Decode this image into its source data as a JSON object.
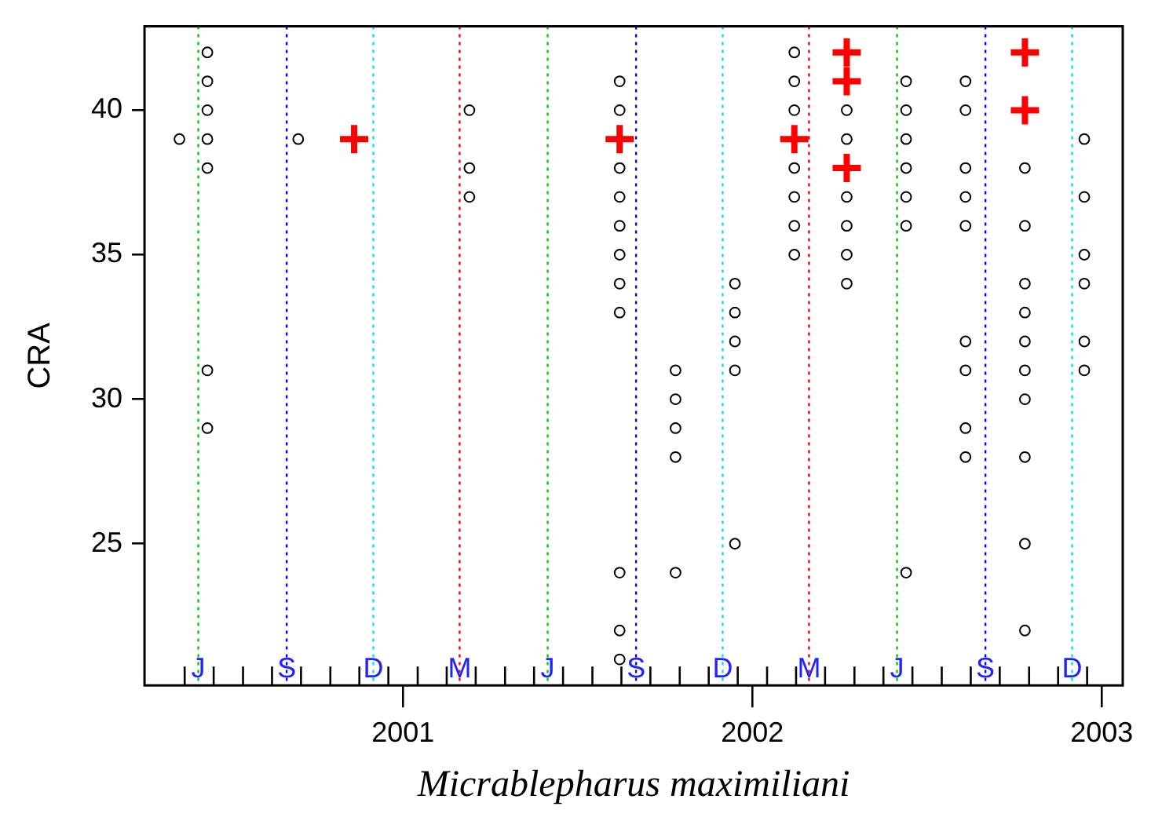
{
  "chart_data": {
    "type": "scatter",
    "xlabel": "Micrablepharus maximiliani",
    "ylabel": "CRA",
    "xlim": [
      2000.26,
      2003.06
    ],
    "ylim": [
      20.1,
      42.9
    ],
    "xticks": [
      {
        "value": 2000.375,
        "label": null
      },
      {
        "value": 2000.458,
        "label": null
      },
      {
        "value": 2000.542,
        "label": null
      },
      {
        "value": 2000.625,
        "label": null
      },
      {
        "value": 2000.708,
        "label": null
      },
      {
        "value": 2000.792,
        "label": null
      },
      {
        "value": 2000.875,
        "label": null
      },
      {
        "value": 2000.958,
        "label": null
      },
      2001,
      {
        "value": 2001.042,
        "label": null
      },
      {
        "value": 2001.125,
        "label": null
      },
      {
        "value": 2001.208,
        "label": null
      },
      {
        "value": 2001.292,
        "label": null
      },
      {
        "value": 2001.375,
        "label": null
      },
      {
        "value": 2001.458,
        "label": null
      },
      {
        "value": 2001.542,
        "label": null
      },
      {
        "value": 2001.625,
        "label": null
      },
      {
        "value": 2001.708,
        "label": null
      },
      {
        "value": 2001.792,
        "label": null
      },
      {
        "value": 2001.875,
        "label": null
      },
      {
        "value": 2001.958,
        "label": null
      },
      2002,
      {
        "value": 2002.042,
        "label": null
      },
      {
        "value": 2002.125,
        "label": null
      },
      {
        "value": 2002.208,
        "label": null
      },
      {
        "value": 2002.292,
        "label": null
      },
      {
        "value": 2002.375,
        "label": null
      },
      {
        "value": 2002.458,
        "label": null
      },
      {
        "value": 2002.542,
        "label": null
      },
      {
        "value": 2002.625,
        "label": null
      },
      {
        "value": 2002.708,
        "label": null
      },
      {
        "value": 2002.792,
        "label": null
      },
      {
        "value": 2002.875,
        "label": null
      },
      {
        "value": 2002.958,
        "label": null
      },
      2003
    ],
    "yticks": [
      25,
      30,
      35,
      40
    ],
    "grid": false,
    "legend": false,
    "series": [
      {
        "color": "#000000",
        "marker": "circle",
        "x": [
          2000.36,
          2000.44,
          2000.44,
          2000.44,
          2000.44,
          2000.44,
          2000.44,
          2000.44,
          2000.7,
          2001.19,
          2001.19,
          2001.19,
          2001.62,
          2001.62,
          2001.62,
          2001.62,
          2001.62,
          2001.62,
          2001.62,
          2001.62,
          2001.62,
          2001.62,
          2001.62,
          2001.78,
          2001.78,
          2001.78,
          2001.78,
          2001.78,
          2001.95,
          2001.95,
          2001.95,
          2001.95,
          2001.95,
          2002.12,
          2002.12,
          2002.12,
          2002.12,
          2002.12,
          2002.12,
          2002.12,
          2002.27,
          2002.27,
          2002.27,
          2002.27,
          2002.27,
          2002.27,
          2002.44,
          2002.44,
          2002.44,
          2002.44,
          2002.44,
          2002.44,
          2002.44,
          2002.61,
          2002.61,
          2002.61,
          2002.61,
          2002.61,
          2002.61,
          2002.61,
          2002.61,
          2002.61,
          2002.78,
          2002.78,
          2002.78,
          2002.78,
          2002.78,
          2002.78,
          2002.78,
          2002.78,
          2002.78,
          2002.78,
          2002.95,
          2002.95,
          2002.95,
          2002.95,
          2002.95,
          2002.95
        ],
        "values": [
          39,
          42,
          41,
          40,
          39,
          38,
          31,
          29,
          39,
          40,
          38,
          37,
          41,
          40,
          38,
          37,
          36,
          35,
          34,
          33,
          24,
          22,
          21,
          31,
          30,
          29,
          28,
          24,
          34,
          33,
          32,
          31,
          25,
          42,
          41,
          40,
          38,
          37,
          36,
          35,
          40,
          39,
          37,
          36,
          35,
          34,
          41,
          40,
          39,
          38,
          37,
          36,
          24,
          41,
          40,
          38,
          37,
          36,
          32,
          31,
          29,
          28,
          38,
          36,
          34,
          33,
          32,
          31,
          30,
          28,
          25,
          22,
          39,
          37,
          35,
          34,
          32,
          31
        ]
      },
      {
        "color": "#ff0000",
        "marker": "cross",
        "x": [
          2000.86,
          2001.62,
          2002.12,
          2002.27,
          2002.27,
          2002.27,
          2002.78,
          2002.78
        ],
        "values": [
          39,
          39,
          39,
          42,
          41,
          38,
          42,
          40
        ]
      }
    ],
    "ref_lines": [
      {
        "axis": "x",
        "value": 2000.414,
        "label": "J",
        "color": "#00cc00",
        "line_style": "dotted"
      },
      {
        "axis": "x",
        "value": 2000.667,
        "label": "S",
        "color": "#0000ff",
        "line_style": "dotted"
      },
      {
        "axis": "x",
        "value": 2000.915,
        "label": "D",
        "color": "#00e5e5",
        "line_style": "dotted"
      },
      {
        "axis": "x",
        "value": 2001.162,
        "label": "M",
        "color": "#ff0000",
        "line_style": "dotted"
      },
      {
        "axis": "x",
        "value": 2001.414,
        "label": "J",
        "color": "#00cc00",
        "line_style": "dotted"
      },
      {
        "axis": "x",
        "value": 2001.667,
        "label": "S",
        "color": "#0000ff",
        "line_style": "dotted"
      },
      {
        "axis": "x",
        "value": 2001.915,
        "label": "D",
        "color": "#00e5e5",
        "line_style": "dotted"
      },
      {
        "axis": "x",
        "value": 2002.162,
        "label": "M",
        "color": "#ff0000",
        "line_style": "dotted"
      },
      {
        "axis": "x",
        "value": 2002.414,
        "label": "J",
        "color": "#00cc00",
        "line_style": "dotted"
      },
      {
        "axis": "x",
        "value": 2002.667,
        "label": "S",
        "color": "#0000ff",
        "line_style": "dotted"
      },
      {
        "axis": "x",
        "value": 2002.915,
        "label": "D",
        "color": "#00e5e5",
        "line_style": "dotted"
      }
    ]
  }
}
